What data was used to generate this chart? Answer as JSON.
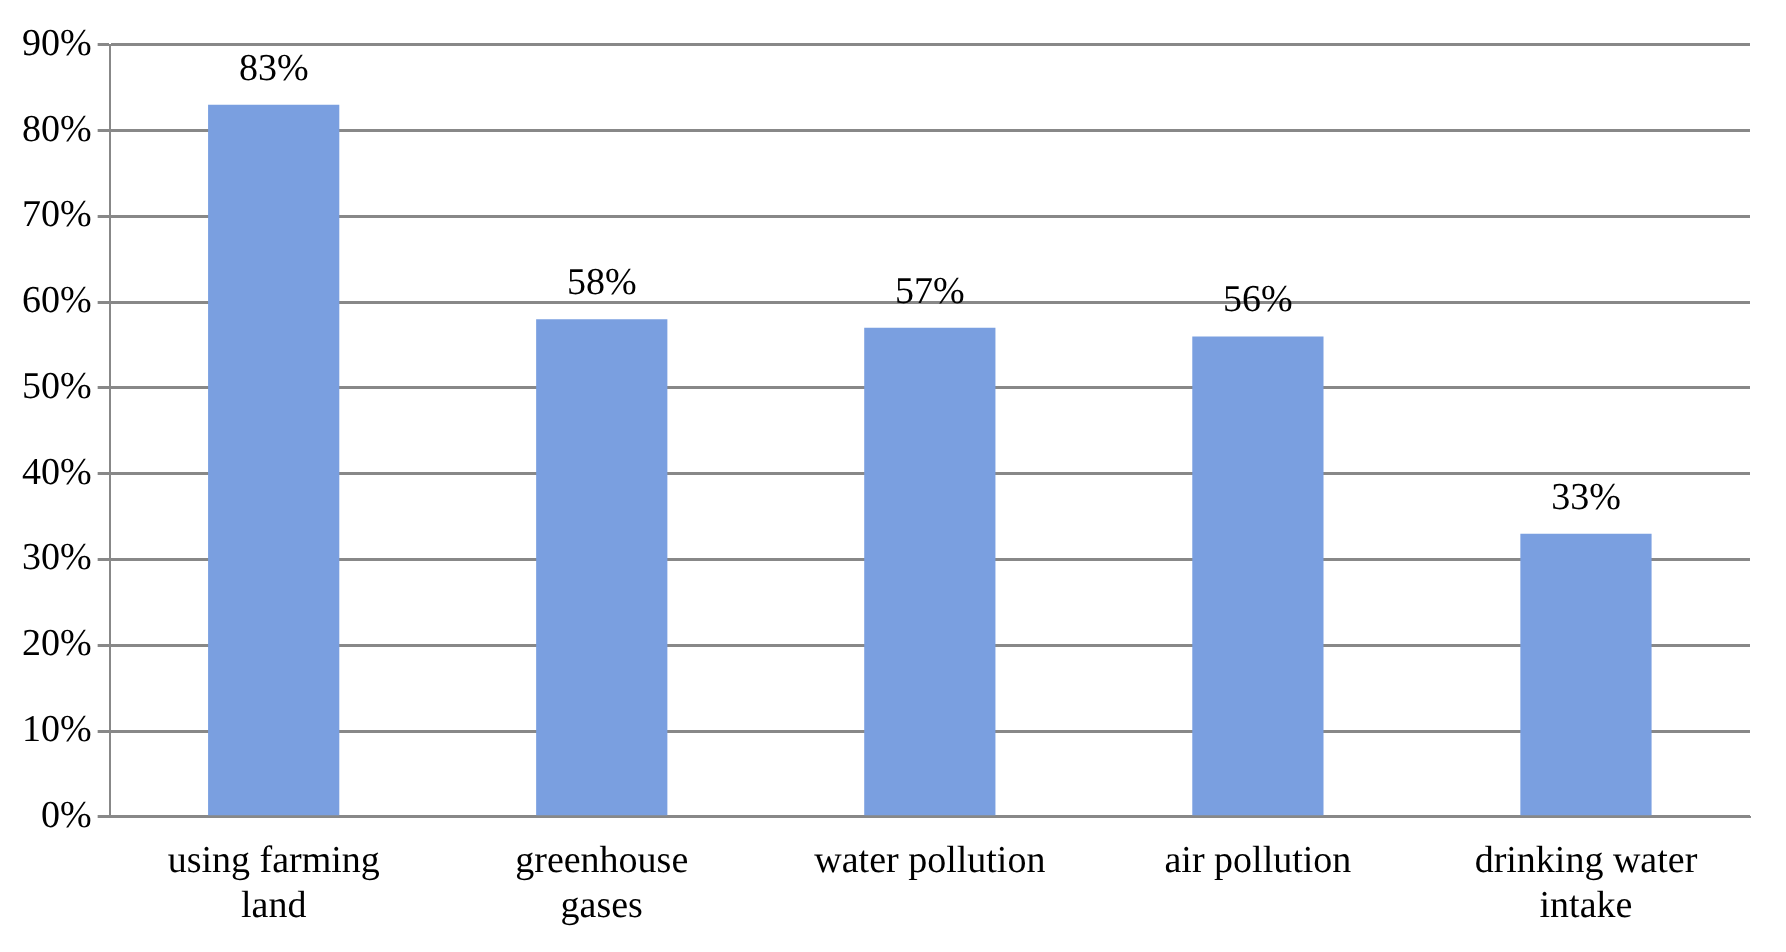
{
  "chart_data": {
    "type": "bar",
    "categories": [
      "using farming land",
      "greenhouse gases",
      "water pollution",
      "air pollution",
      "drinking water intake"
    ],
    "values": [
      83,
      58,
      57,
      56,
      33
    ],
    "color": "#7a9fe0",
    "ylim": [
      0,
      90
    ],
    "yticks": [
      {
        "value": 0,
        "label": "0%"
      },
      {
        "value": 10,
        "label": "10%"
      },
      {
        "value": 20,
        "label": "20%"
      },
      {
        "value": 30,
        "label": "30%"
      },
      {
        "value": 40,
        "label": "40%"
      },
      {
        "value": 50,
        "label": "50%"
      },
      {
        "value": 60,
        "label": "60%"
      },
      {
        "value": 70,
        "label": "70%"
      },
      {
        "value": 80,
        "label": "80%"
      },
      {
        "value": 90,
        "label": "90%"
      }
    ],
    "value_labels": [
      "83%",
      "58%",
      "57%",
      "56%",
      "33%"
    ],
    "grid": "y",
    "legend": false
  }
}
